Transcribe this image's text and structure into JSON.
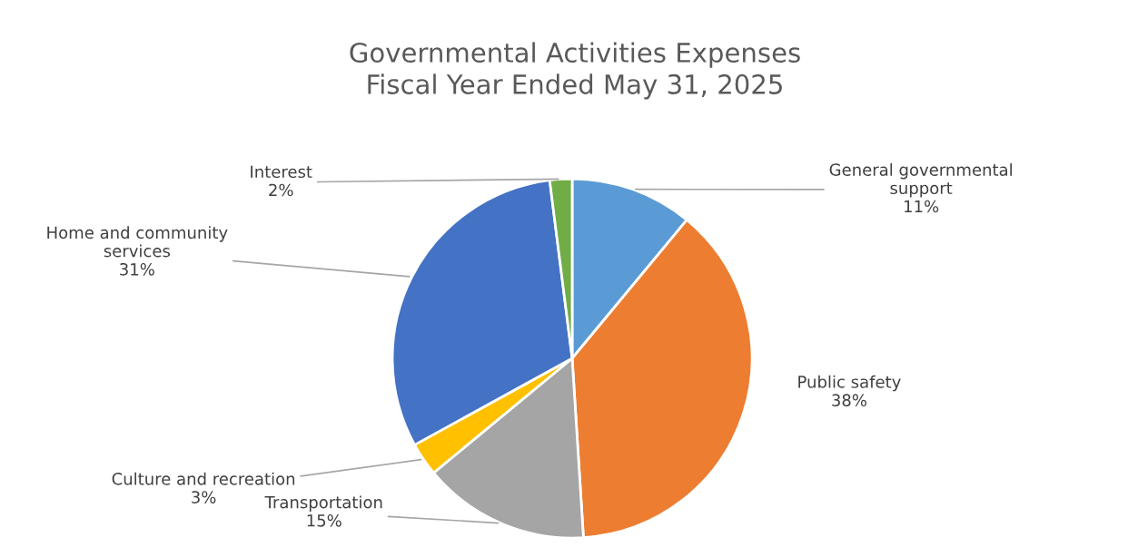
{
  "chart_data": {
    "type": "pie",
    "title": "Governmental Activities Expenses\nFiscal Year Ended May 31, 2025",
    "categories": [
      "General governmental\nsupport",
      "Public safety",
      "Transportation",
      "Culture and recreation",
      "Home and community\nservices",
      "Interest"
    ],
    "values": [
      11,
      38,
      15,
      3,
      31,
      2
    ],
    "colors": [
      "#5b9bd5",
      "#ed7d31",
      "#a5a5a5",
      "#ffc000",
      "#4472c4",
      "#70ad47"
    ],
    "value_labels": [
      "11%",
      "38%",
      "15%",
      "3%",
      "31%",
      "2%"
    ],
    "legend": false
  }
}
